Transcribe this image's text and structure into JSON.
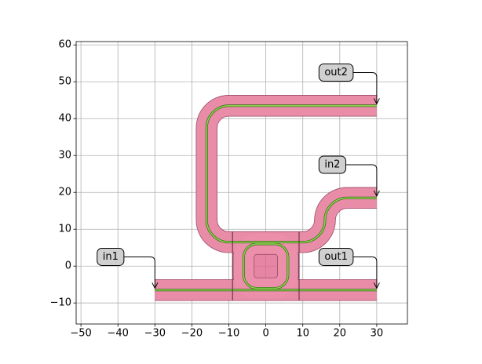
{
  "chart_data": {
    "type": "layout",
    "xlim": [
      -51.3,
      38.3
    ],
    "ylim": [
      -15.7,
      60.9
    ],
    "xticks": [
      {
        "value": -50,
        "label": "−50"
      },
      {
        "value": -40,
        "label": "−40"
      },
      {
        "value": -30,
        "label": "−30"
      },
      {
        "value": -20,
        "label": "−20"
      },
      {
        "value": -10,
        "label": "−10"
      },
      0,
      10,
      20,
      30
    ],
    "yticks": [
      {
        "value": -10,
        "label": "−10"
      },
      0,
      10,
      20,
      30,
      40,
      50,
      60
    ],
    "grid": true,
    "bend_radius": 6,
    "waveguide_width": 5.5,
    "cladding_color": "#ec8fab",
    "core_color": "#5aa02c",
    "waveguides": [
      {
        "x": [
          30,
          -16,
          -16,
          16,
          16,
          30
        ],
        "y": [
          43.5,
          43.5,
          6.5,
          6.5,
          18.5,
          18.5
        ]
      },
      {
        "x": [
          -30,
          30
        ],
        "y": [
          -6.5,
          -6.5
        ]
      }
    ],
    "ring": {
      "center": [
        0,
        0
      ],
      "radius": 6,
      "region_radius": 8.7,
      "region_color": "#de5d85"
    },
    "boundaries": [
      {
        "x": [
          -9,
          -9
        ],
        "y": [
          -9.3,
          9.3
        ]
      },
      {
        "x": [
          9,
          9
        ],
        "y": [
          -9.3,
          9.3
        ]
      }
    ],
    "annotations": [
      {
        "text": "out2",
        "xy": [
          30,
          44
        ],
        "xytext": [
          19,
          52.5
        ]
      },
      {
        "text": "in2",
        "xy": [
          30,
          19
        ],
        "xytext": [
          18,
          27.5
        ]
      },
      {
        "text": "out1",
        "xy": [
          30,
          -6
        ],
        "xytext": [
          19,
          2.5
        ]
      },
      {
        "text": "in1",
        "xy": [
          -30,
          -6
        ],
        "xytext": [
          -42,
          2.5
        ]
      }
    ]
  }
}
